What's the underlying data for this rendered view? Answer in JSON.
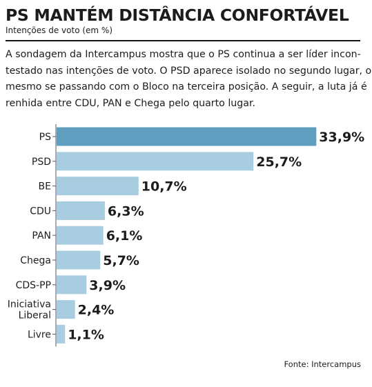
{
  "header": {
    "title": "PS MANTÉM DISTÂNCIA CONFORTÁVEL",
    "subtitle": "Intenções de voto (em %)"
  },
  "intro": {
    "lines": [
      "A sondagem da Intercampus mostra que o PS continua a ser líder incon-",
      "testado nas intenções de voto. O PSD aparece isolado no segundo lugar, o",
      "mesmo se passando com o Bloco na terceira posição. A seguir, a luta já é",
      "renhida entre CDU, PAN e Chega pelo quarto lugar."
    ]
  },
  "chart_data": {
    "type": "bar",
    "orientation": "horizontal",
    "title": "PS MANTÉM DISTÂNCIA CONFORTÁVEL",
    "subtitle": "Intenções de voto (em %)",
    "categories": [
      [
        "PS"
      ],
      [
        "PSD"
      ],
      [
        "BE"
      ],
      [
        "CDU"
      ],
      [
        "PAN"
      ],
      [
        "Chega"
      ],
      [
        "CDS-PP"
      ],
      [
        "Iniciativa",
        "Liberal"
      ],
      [
        "Livre"
      ]
    ],
    "values": [
      33.9,
      25.7,
      10.7,
      6.3,
      6.1,
      5.7,
      3.9,
      2.4,
      1.1
    ],
    "value_labels": [
      "33,9%",
      "25,7%",
      "10,7%",
      "6,3%",
      "6,1%",
      "5,7%",
      "3,9%",
      "2,4%",
      "1,1%"
    ],
    "highlight_index": 0,
    "xlim": [
      0,
      35
    ],
    "grid": false,
    "colors": {
      "highlight": "#5f9ebf",
      "bar": "#a9cde0",
      "axis": "#555555",
      "text": "#1c1c1c"
    }
  },
  "source": "Fonte: Intercampus"
}
